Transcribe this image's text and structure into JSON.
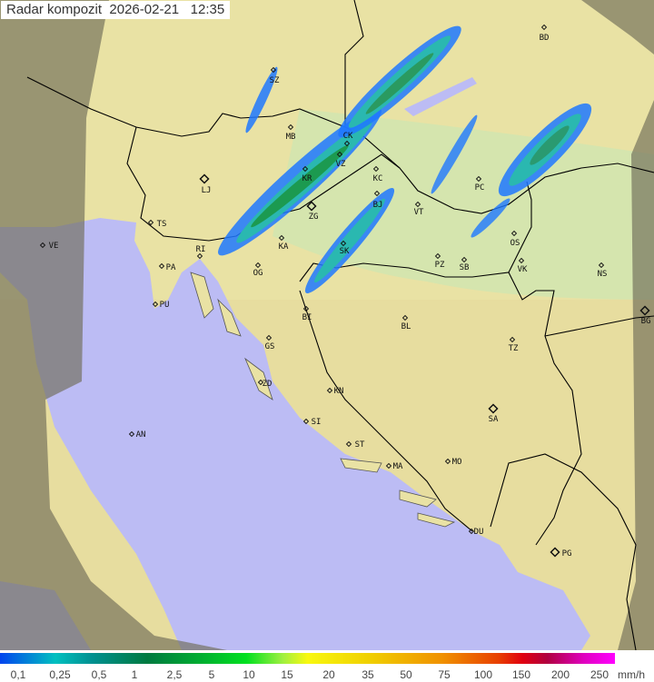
{
  "header": {
    "title": "Radar kompozit",
    "date": "2026-02-21",
    "time": "12:35"
  },
  "map": {
    "colors": {
      "land": "#e9e2a4",
      "sea": "#bcbcf4",
      "outside_range": "#8c8a6c",
      "border": "#000000"
    },
    "cities": [
      "BD",
      "SZ",
      "MB",
      "CK",
      "VZ",
      "KR",
      "LJ",
      "KC",
      "BJ",
      "ZG",
      "TS",
      "VT",
      "PC",
      "RI",
      "KA",
      "SK",
      "VE",
      "PA",
      "OG",
      "OS",
      "PZ",
      "SB",
      "VK",
      "NS",
      "PU",
      "BI",
      "BL",
      "BG",
      "GS",
      "TZ",
      "ZD",
      "KN",
      "SA",
      "SI",
      "AN",
      "ST",
      "MO",
      "MA",
      "DU",
      "PG"
    ]
  },
  "legend": {
    "unit": "mm/h",
    "labels": [
      "0,1",
      "0,25",
      "0,5",
      "1",
      "2,5",
      "5",
      "10",
      "15",
      "20",
      "35",
      "50",
      "75",
      "100",
      "150",
      "200",
      "250"
    ]
  }
}
